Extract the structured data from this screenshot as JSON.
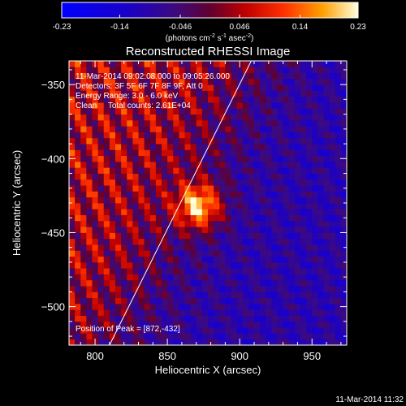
{
  "chart_data": {
    "type": "heatmap",
    "title": "Reconstructed RHESSI Image",
    "xlabel": "Heliocentric X (arcsec)",
    "ylabel": "Heliocentric Y (arcsec)",
    "xlim": [
      782,
      974
    ],
    "ylim": [
      -526,
      -334
    ],
    "xticks": [
      800,
      850,
      900,
      950
    ],
    "yticks": [
      -350,
      -400,
      -450,
      -500
    ],
    "colorbar": {
      "min": -0.23,
      "max": 0.23,
      "ticks": [
        "-0.23",
        "-0.14",
        "-0.046",
        "0.046",
        "0.14",
        "0.23"
      ],
      "units_main": "(photons cm",
      "units_sup1": "-2",
      "units_s": " s",
      "units_sup2": "-1",
      "units_asec": " asec",
      "units_sup3": "-2",
      "units_close": ")"
    },
    "annotations": {
      "time_range": "11-Mar-2014 09:02:08.000 to 09:05:26.000",
      "detectors": "Detectors: 3F 5F 6F 7F 8F 9F, Att 0",
      "energy": "Energy Range: 3.0 - 6.0 keV",
      "method": "Clean     Total counts: 2.61E+04",
      "peak": "Position of Peak = [872,-432]"
    },
    "peak": {
      "x": 872,
      "y": -432
    },
    "limb_line": [
      {
        "x": 810,
        "y": -526
      },
      {
        "x": 908,
        "y": -334
      }
    ],
    "timestamp": "11-Mar-2014 11:32"
  }
}
